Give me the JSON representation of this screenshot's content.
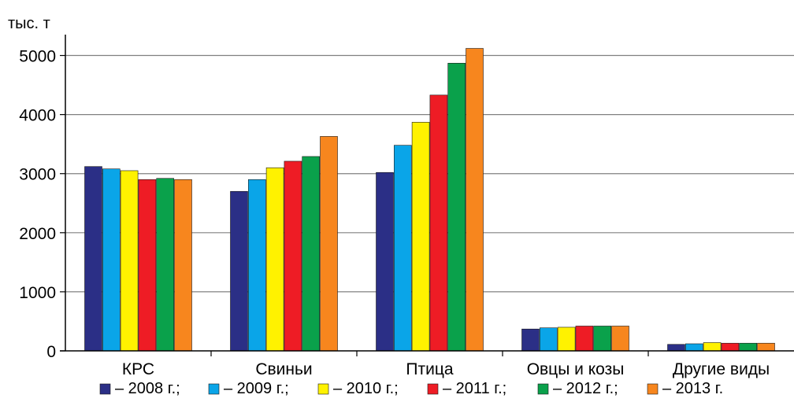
{
  "chart_data": {
    "type": "bar",
    "title": "",
    "ylabel": "тыс. т",
    "xlabel": "",
    "ylim": [
      0,
      5300
    ],
    "yticks": [
      0,
      1000,
      2000,
      3000,
      4000,
      5000
    ],
    "grid": true,
    "legend_position": "bottom",
    "categories": [
      "КРС",
      "Свиньи",
      "Птица",
      "Овцы и козы",
      "Другие виды"
    ],
    "series": [
      {
        "name": "– 2008 г.;",
        "color": "#2b2f86",
        "values": [
          3120,
          2700,
          3020,
          370,
          110
        ]
      },
      {
        "name": "– 2009 г.;",
        "color": "#0aa5e8",
        "values": [
          3080,
          2900,
          3480,
          390,
          120
        ]
      },
      {
        "name": "– 2010 г.;",
        "color": "#fff200",
        "values": [
          3050,
          3100,
          3870,
          400,
          140
        ]
      },
      {
        "name": "– 2011 г.;",
        "color": "#ee1c25",
        "values": [
          2900,
          3210,
          4330,
          420,
          130
        ]
      },
      {
        "name": "– 2012 г.;",
        "color": "#0aa14b",
        "values": [
          2920,
          3290,
          4870,
          420,
          130
        ]
      },
      {
        "name": "– 2013 г.",
        "color": "#f7861e",
        "values": [
          2900,
          3630,
          5120,
          420,
          130
        ]
      }
    ]
  }
}
